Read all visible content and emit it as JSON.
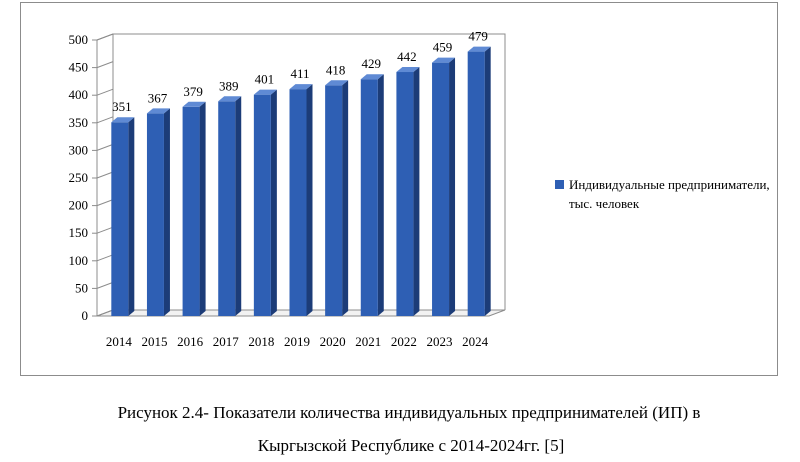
{
  "chart_data": {
    "type": "bar",
    "categories": [
      "2014",
      "2015",
      "2016",
      "2017",
      "2018",
      "2019",
      "2020",
      "2021",
      "2022",
      "2023",
      "2024"
    ],
    "series": [
      {
        "name": "Индивидуальные предприниматели, тыс. человек",
        "values": [
          351,
          367,
          379,
          389,
          401,
          411,
          418,
          429,
          442,
          459,
          479
        ]
      }
    ],
    "yticks": [
      0,
      50,
      100,
      150,
      200,
      250,
      300,
      350,
      400,
      450,
      500
    ],
    "ylim": [
      0,
      500
    ],
    "data_labels": true,
    "legend_position": "right",
    "grid": false,
    "style": "3d-column",
    "colors": {
      "bar_front": "#2e5fb4",
      "bar_side": "#1c3c78",
      "bar_top": "#5f8ad4",
      "axis": "#8c8c8c"
    }
  },
  "legend": {
    "label": "Индивидуальные предприниматели, тыс. человек"
  },
  "caption": {
    "line1": "Рисунок 2.4- Показатели количества индивидуальных предпринимателей (ИП) в",
    "line2": "Кыргызской Республике с 2014-2024гг. [5]"
  }
}
